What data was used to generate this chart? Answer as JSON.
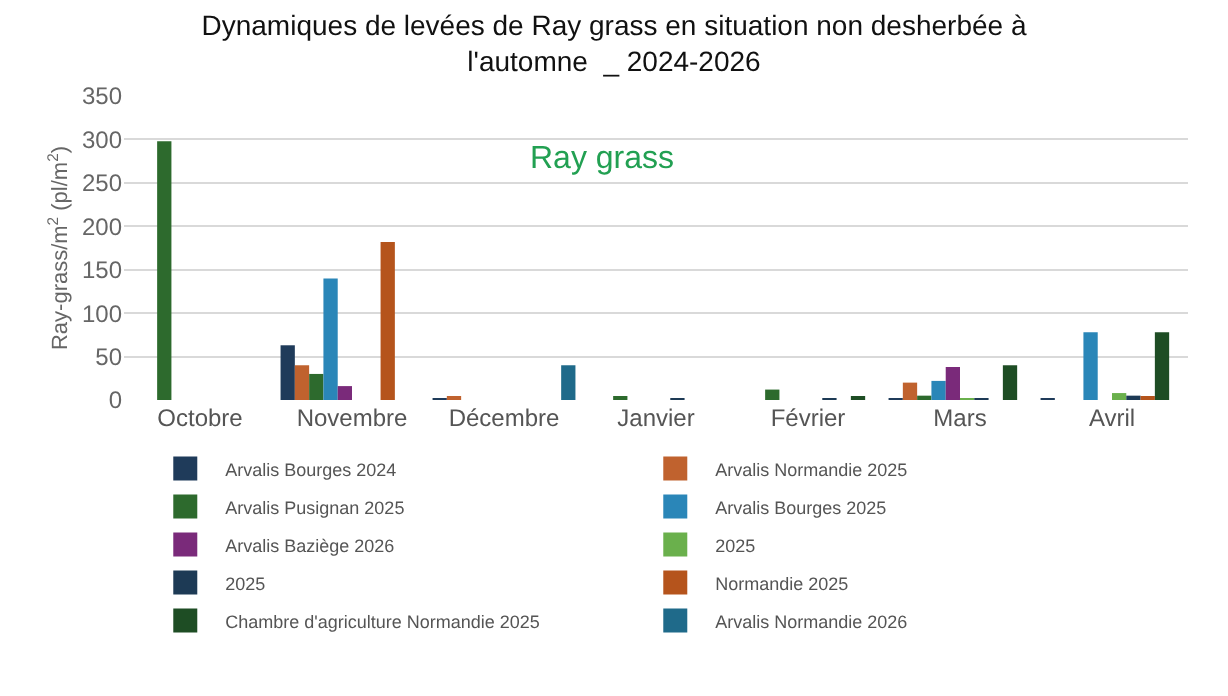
{
  "chart_data": {
    "type": "bar",
    "title": "Dynamiques de levées de Ray grass en situation non desherbée à l'automne  _ 2024-2026",
    "ylabel": "Ray-grass/m$^{2}$ (pl/m$^{2}$)",
    "annotations": [
      "Ray grass"
    ],
    "categories": [
      "Octobre",
      "Novembre",
      "Décembre",
      "Janvier",
      "Février",
      "Mars",
      "Avril"
    ],
    "ylim": [
      0,
      350
    ],
    "yticks": [
      0,
      50,
      100,
      150,
      200,
      250,
      300,
      350
    ],
    "grid": "y",
    "legend": "bottom",
    "series": [
      {
        "name": "Arvalis Bourges 2024",
        "color": "#1f3b5a",
        "values": [
          null,
          63,
          1,
          null,
          null,
          1,
          1
        ]
      },
      {
        "name": "Arvalis Normandie 2025",
        "color": "#c0622e",
        "values": [
          null,
          40,
          3,
          null,
          null,
          20,
          null
        ]
      },
      {
        "name": "Arvalis Pusignan 2025",
        "color": "#2d6a2d",
        "values": [
          298,
          30,
          null,
          4,
          12,
          5,
          null
        ]
      },
      {
        "name": "Arvalis Bourges 2025",
        "color": "#2a86b8",
        "values": [
          null,
          140,
          null,
          null,
          null,
          22,
          78
        ]
      },
      {
        "name": "Arvalis Baziège 2026",
        "color": "#7a2a7a",
        "values": [
          null,
          16,
          null,
          null,
          null,
          38,
          null
        ]
      },
      {
        "name": "2025",
        "color": "#6ab04c",
        "values": [
          null,
          null,
          null,
          null,
          null,
          2,
          8
        ]
      },
      {
        "name": "2025",
        "color": "#1d3a55",
        "values": [
          null,
          null,
          null,
          1,
          1,
          2,
          5
        ]
      },
      {
        "name": "Normandie 2025",
        "color": "#b5541c",
        "values": [
          null,
          182,
          null,
          null,
          null,
          null,
          3
        ]
      },
      {
        "name": "Chambre d'agriculture Normandie 2025",
        "color": "#1e4d24",
        "values": [
          null,
          null,
          null,
          null,
          3,
          40,
          78
        ]
      },
      {
        "name": "Arvalis Normandie 2026",
        "color": "#1f6a8a",
        "values": [
          null,
          null,
          40,
          null,
          null,
          null,
          null
        ]
      }
    ]
  }
}
